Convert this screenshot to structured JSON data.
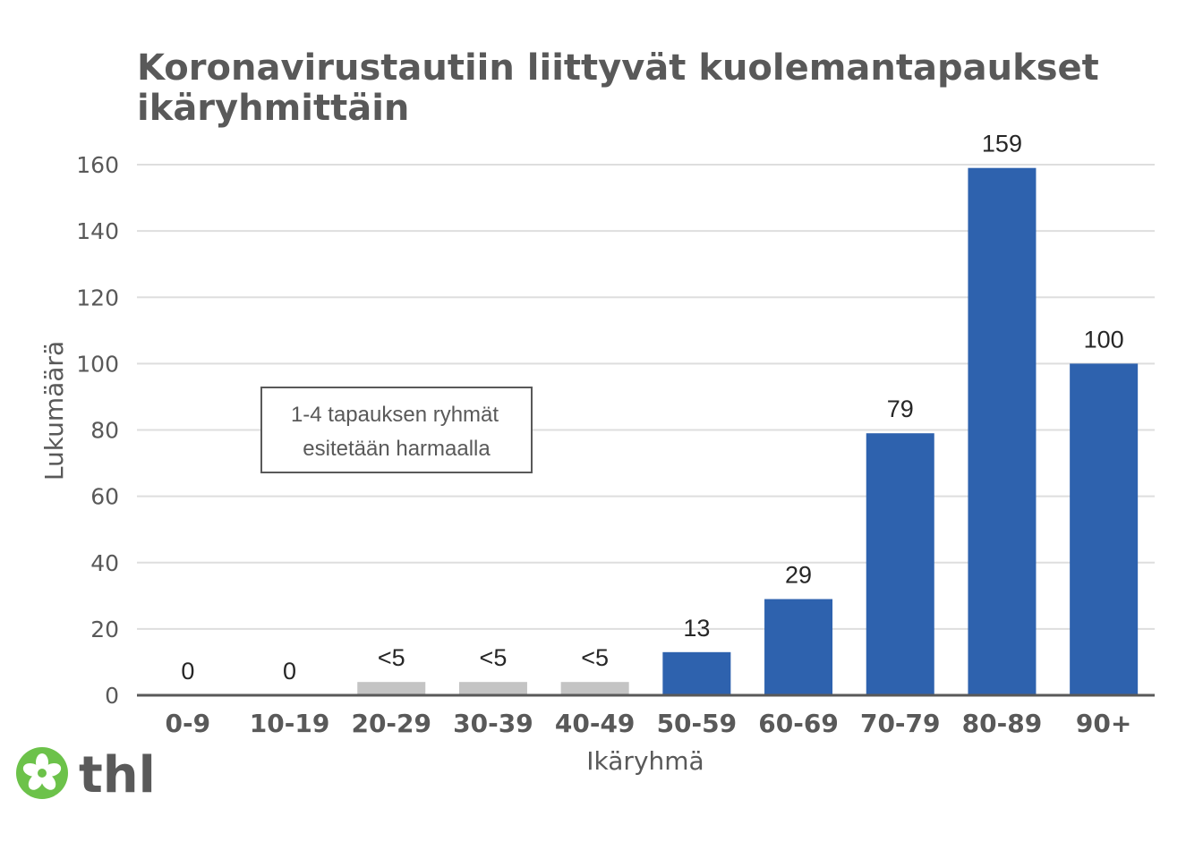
{
  "chart_data": {
    "type": "bar",
    "title_line1": "Koronavirustautiin liittyvät kuolemantapaukset",
    "title_line2": "ikäryhmittäin",
    "xlabel": "Ikäryhmä",
    "ylabel": "Lukumäärä",
    "ylim": [
      0,
      160
    ],
    "yticks": [
      "0",
      "20",
      "40",
      "60",
      "80",
      "100",
      "120",
      "140",
      "160"
    ],
    "grid": true,
    "categories": [
      "0-9",
      "10-19",
      "20-29",
      "30-39",
      "40-49",
      "50-59",
      "60-69",
      "70-79",
      "80-89",
      "90+"
    ],
    "values": [
      0,
      0,
      4,
      4,
      4,
      13,
      29,
      79,
      159,
      100
    ],
    "labels": [
      "0",
      "0",
      "<5",
      "<5",
      "<5",
      "13",
      "29",
      "79",
      "159",
      "100"
    ],
    "suppressed": [
      false,
      false,
      true,
      true,
      true,
      false,
      false,
      false,
      false,
      false
    ],
    "colors": {
      "bar": "#2e62ae",
      "suppressed": "#c4c4c4",
      "grid": "#dedede",
      "axis": "#595959"
    },
    "annotation_line1": "1-4 tapauksen ryhmät",
    "annotation_line2": "esitetään harmaalla"
  },
  "logo": {
    "text": "thl",
    "icon": "flower-icon",
    "color": "#6cc24a"
  }
}
